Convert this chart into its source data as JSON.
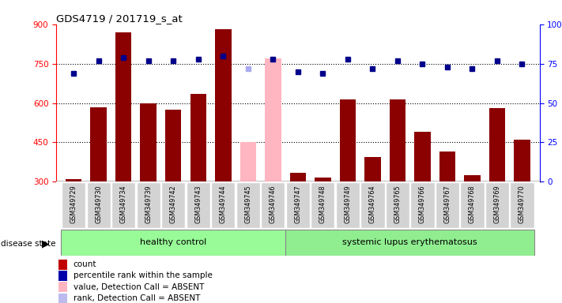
{
  "title": "GDS4719 / 201719_s_at",
  "samples": [
    "GSM349729",
    "GSM349730",
    "GSM349734",
    "GSM349739",
    "GSM349742",
    "GSM349743",
    "GSM349744",
    "GSM349745",
    "GSM349746",
    "GSM349747",
    "GSM349748",
    "GSM349749",
    "GSM349764",
    "GSM349765",
    "GSM349766",
    "GSM349767",
    "GSM349768",
    "GSM349769",
    "GSM349770"
  ],
  "counts": [
    310,
    585,
    870,
    600,
    575,
    635,
    880,
    null,
    null,
    335,
    315,
    615,
    395,
    615,
    490,
    415,
    325,
    580,
    460
  ],
  "absent_values": [
    null,
    null,
    null,
    null,
    null,
    null,
    null,
    450,
    770,
    null,
    null,
    null,
    null,
    null,
    null,
    null,
    null,
    null,
    null
  ],
  "percentile_ranks": [
    69,
    77,
    79,
    77,
    77,
    78,
    80,
    null,
    78,
    70,
    69,
    78,
    72,
    77,
    75,
    73,
    72,
    77,
    75
  ],
  "absent_ranks": [
    null,
    null,
    null,
    null,
    null,
    null,
    null,
    72,
    null,
    null,
    null,
    null,
    null,
    null,
    null,
    null,
    null,
    null,
    null
  ],
  "healthy_count": 9,
  "ylim_left": [
    300,
    900
  ],
  "ylim_right": [
    0,
    100
  ],
  "yticks_left": [
    300,
    450,
    600,
    750,
    900
  ],
  "yticks_right": [
    0,
    25,
    50,
    75,
    100
  ],
  "bar_color_normal": "#8B0000",
  "bar_color_absent": "#FFB6C1",
  "dot_color_normal": "#00008B",
  "dot_color_absent": "#AAAAEE",
  "healthy_bg": "#98FB98",
  "lupus_bg": "#90EE90",
  "sample_bg": "#D3D3D3",
  "legend_items": [
    {
      "label": "count",
      "color": "#C00000"
    },
    {
      "label": "percentile rank within the sample",
      "color": "#0000AA"
    },
    {
      "label": "value, Detection Call = ABSENT",
      "color": "#FFB6C1"
    },
    {
      "label": "rank, Detection Call = ABSENT",
      "color": "#BBBBEE"
    }
  ]
}
